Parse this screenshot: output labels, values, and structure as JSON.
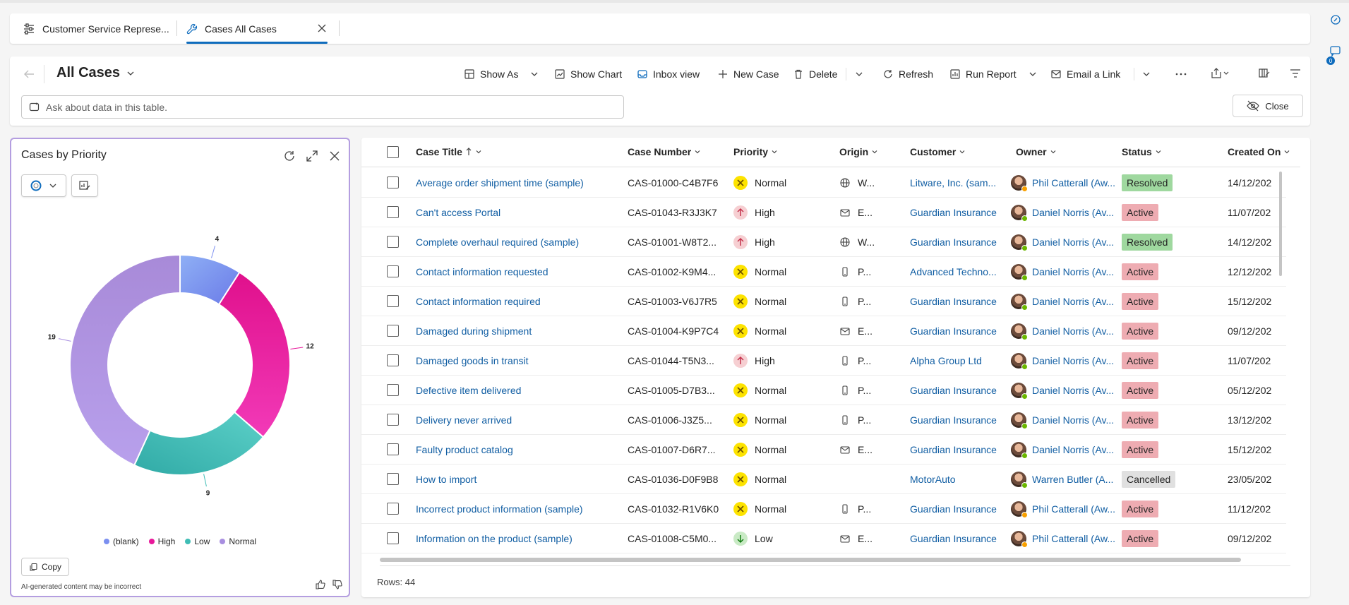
{
  "tabs": {
    "tab1_label": "Customer Service Represe...",
    "tab2_label": "Cases All Cases"
  },
  "view": {
    "title": "All Cases"
  },
  "commands": {
    "show_as": "Show As",
    "show_chart": "Show Chart",
    "inbox_view": "Inbox view",
    "new_case": "New Case",
    "delete": "Delete",
    "refresh": "Refresh",
    "run_report": "Run Report",
    "email_link": "Email a Link",
    "close": "Close"
  },
  "search": {
    "placeholder": "Ask about data in this table."
  },
  "rail": {
    "badge": "0"
  },
  "chart_panel": {
    "title": "Cases by Priority",
    "copy_label": "Copy",
    "disclaimer": "AI-generated content may be incorrect"
  },
  "chart_data": {
    "type": "pie",
    "variant": "donut",
    "title": "Cases by Priority",
    "categories": [
      "(blank)",
      "High",
      "Low",
      "Normal"
    ],
    "values": [
      4,
      12,
      9,
      19
    ],
    "colors": [
      "#7b8ff0",
      "#e8189a",
      "#3fbdb5",
      "#a88ee0"
    ],
    "legend_position": "bottom"
  },
  "grid": {
    "columns": {
      "title": "Case Title",
      "number": "Case Number",
      "priority": "Priority",
      "origin": "Origin",
      "customer": "Customer",
      "owner": "Owner",
      "status": "Status",
      "created": "Created On"
    },
    "rows": [
      {
        "title": "Average order shipment time (sample)",
        "number": "CAS-01000-C4B7F6",
        "priority": "Normal",
        "origin": "W...",
        "origin_icon": "globe-icon",
        "customer": "Litware, Inc. (sam...",
        "owner": "Phil Catterall (Aw...",
        "owner_presence": "away",
        "status": "Resolved",
        "created": "14/12/202"
      },
      {
        "title": "Can't access Portal",
        "number": "CAS-01043-R3J3K7",
        "priority": "High",
        "origin": "E...",
        "origin_icon": "mail-icon",
        "customer": "Guardian Insurance",
        "owner": "Daniel Norris (Av...",
        "owner_presence": "available",
        "status": "Active",
        "created": "11/07/202"
      },
      {
        "title": "Complete overhaul required (sample)",
        "number": "CAS-01001-W8T2...",
        "priority": "High",
        "origin": "W...",
        "origin_icon": "globe-icon",
        "customer": "Guardian Insurance",
        "owner": "Daniel Norris (Av...",
        "owner_presence": "available",
        "status": "Resolved",
        "created": "14/12/202"
      },
      {
        "title": "Contact information requested",
        "number": "CAS-01002-K9M4...",
        "priority": "Normal",
        "origin": "P...",
        "origin_icon": "phone-icon",
        "customer": "Advanced Techno...",
        "owner": "Daniel Norris (Av...",
        "owner_presence": "available",
        "status": "Active",
        "created": "12/12/202"
      },
      {
        "title": "Contact information required",
        "number": "CAS-01003-V6J7R5",
        "priority": "Normal",
        "origin": "P...",
        "origin_icon": "phone-icon",
        "customer": "Guardian Insurance",
        "owner": "Daniel Norris (Av...",
        "owner_presence": "available",
        "status": "Active",
        "created": "15/12/202"
      },
      {
        "title": "Damaged during shipment",
        "number": "CAS-01004-K9P7C4",
        "priority": "Normal",
        "origin": "E...",
        "origin_icon": "mail-icon",
        "customer": "Guardian Insurance",
        "owner": "Daniel Norris (Av...",
        "owner_presence": "available",
        "status": "Active",
        "created": "09/12/202"
      },
      {
        "title": "Damaged goods in transit",
        "number": "CAS-01044-T5N3...",
        "priority": "High",
        "origin": "P...",
        "origin_icon": "phone-icon",
        "customer": "Alpha Group Ltd",
        "owner": "Daniel Norris (Av...",
        "owner_presence": "available",
        "status": "Active",
        "created": "11/07/202"
      },
      {
        "title": "Defective item delivered",
        "number": "CAS-01005-D7B3...",
        "priority": "Normal",
        "origin": "P...",
        "origin_icon": "phone-icon",
        "customer": "Guardian Insurance",
        "owner": "Daniel Norris (Av...",
        "owner_presence": "available",
        "status": "Active",
        "created": "05/12/202"
      },
      {
        "title": "Delivery never arrived",
        "number": "CAS-01006-J3Z5...",
        "priority": "Normal",
        "origin": "P...",
        "origin_icon": "phone-icon",
        "customer": "Guardian Insurance",
        "owner": "Daniel Norris (Av...",
        "owner_presence": "available",
        "status": "Active",
        "created": "13/12/202"
      },
      {
        "title": "Faulty product catalog",
        "number": "CAS-01007-D6R7...",
        "priority": "Normal",
        "origin": "E...",
        "origin_icon": "mail-icon",
        "customer": "Guardian Insurance",
        "owner": "Daniel Norris (Av...",
        "owner_presence": "available",
        "status": "Active",
        "created": "15/12/202"
      },
      {
        "title": "How to import",
        "number": "CAS-01036-D0F9B8",
        "priority": "Normal",
        "origin": "",
        "origin_icon": "",
        "customer": "MotorAuto",
        "owner": "Warren Butler (A...",
        "owner_presence": "available",
        "status": "Cancelled",
        "created": "23/05/202"
      },
      {
        "title": "Incorrect product information (sample)",
        "number": "CAS-01032-R1V6K0",
        "priority": "Normal",
        "origin": "P...",
        "origin_icon": "phone-icon",
        "customer": "Guardian Insurance",
        "owner": "Phil Catterall (Aw...",
        "owner_presence": "away",
        "status": "Active",
        "created": "11/12/202"
      },
      {
        "title": "Information on the product (sample)",
        "number": "CAS-01008-C5M0...",
        "priority": "Low",
        "origin": "E...",
        "origin_icon": "mail-icon",
        "customer": "Guardian Insurance",
        "owner": "Phil Catterall (Aw...",
        "owner_presence": "away",
        "status": "Active",
        "created": "09/12/202"
      }
    ],
    "row_count": "Rows: 44"
  },
  "colors": {
    "accent": "#0f6cbd",
    "link": "#115ea3",
    "status_resolved": "#9fd89f",
    "status_active": "#eeacb2",
    "status_cancelled": "#e0e0e0",
    "priority_normal": "#fde300",
    "priority_high": "#f6cfd2",
    "priority_low": "#c9eac5",
    "presence_available": "#6bb700",
    "presence_away": "#f8a000"
  }
}
